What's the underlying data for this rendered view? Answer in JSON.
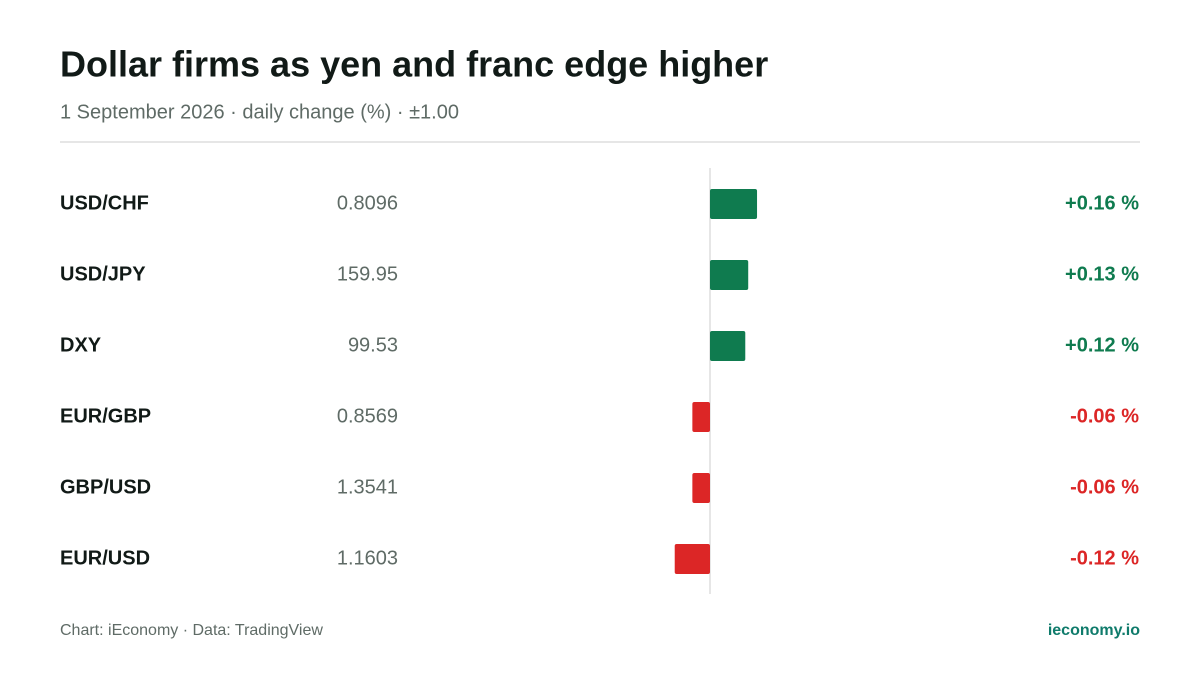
{
  "chart_data": {
    "type": "bar",
    "orientation": "horizontal",
    "title": "Dollar firms as yen and franc edge higher",
    "subtitle": "1 September 2026 · daily change (%) · ±1.00",
    "categories": [
      "USD/CHF",
      "USD/JPY",
      "DXY",
      "EUR/GBP",
      "GBP/USD",
      "EUR/USD"
    ],
    "prices": [
      "0.8096",
      "159.95",
      "99.53",
      "0.8569",
      "1.3541",
      "1.1603"
    ],
    "values": [
      0.16,
      0.13,
      0.12,
      -0.06,
      -0.06,
      -0.12
    ],
    "value_labels": [
      "+0.16 %",
      "+0.13 %",
      "+0.12 %",
      "-0.06 %",
      "-0.06 %",
      "-0.12 %"
    ],
    "xlim": [
      -1,
      1
    ],
    "positive_color": "#0f7b4f",
    "negative_color": "#dc2626",
    "source": "Chart: iEconomy · Data: TradingView",
    "brand": "ieconomy.io"
  }
}
